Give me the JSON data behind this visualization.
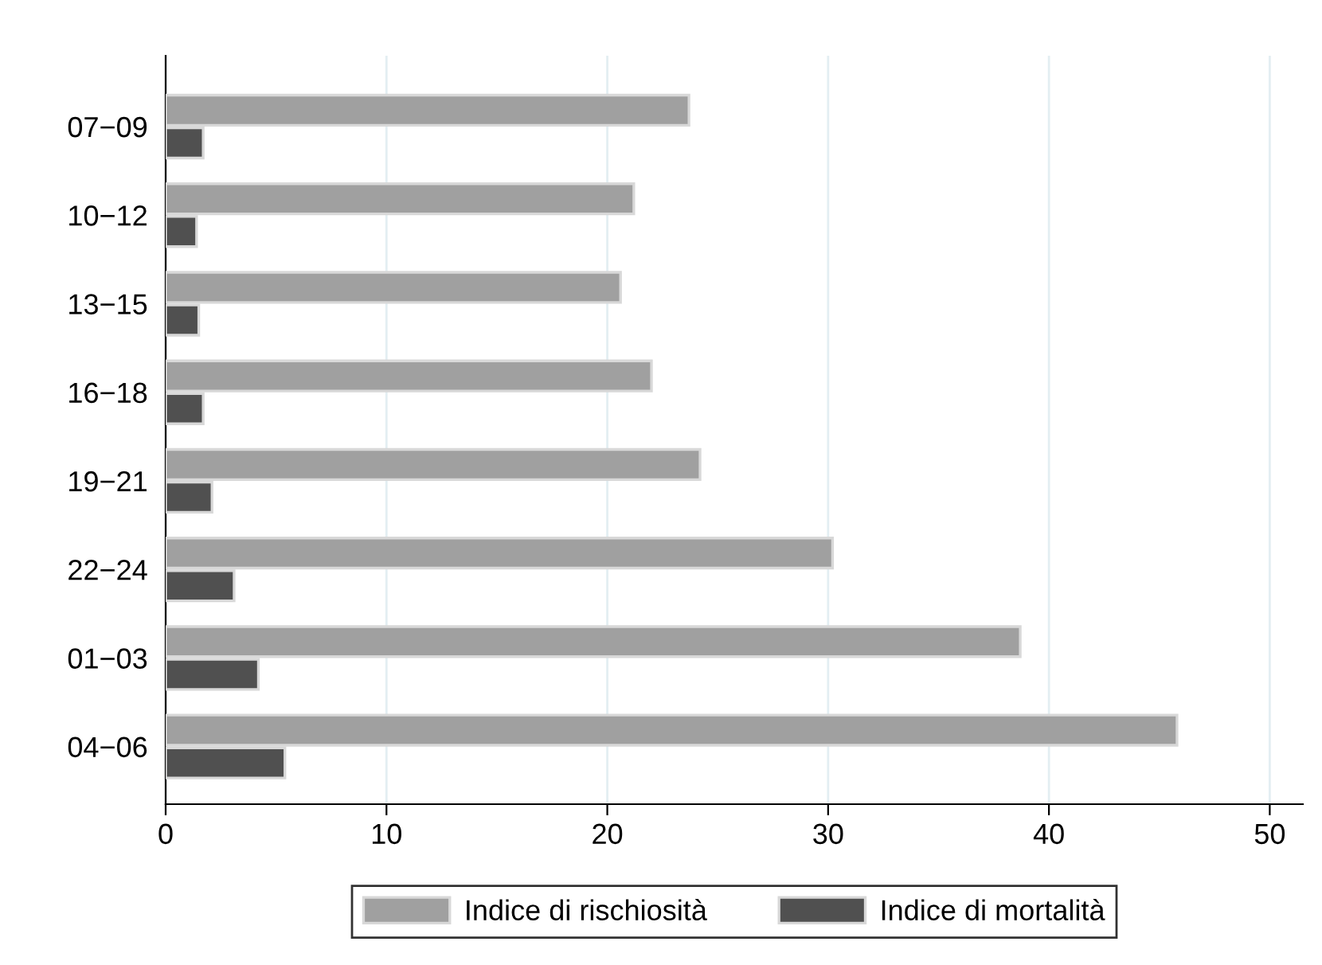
{
  "chart_data": {
    "type": "bar",
    "orientation": "horizontal",
    "categories": [
      "07−09",
      "10−12",
      "13−15",
      "16−18",
      "19−21",
      "22−24",
      "01−03",
      "04−06"
    ],
    "series": [
      {
        "name": "Indice di rischiosità",
        "color": "#a0a0a0",
        "values": [
          23.7,
          21.2,
          20.6,
          22.0,
          24.2,
          30.2,
          38.7,
          45.8
        ]
      },
      {
        "name": "Indice di mortalità",
        "color": "#505050",
        "values": [
          1.7,
          1.4,
          1.5,
          1.7,
          2.1,
          3.1,
          4.2,
          5.4
        ]
      }
    ],
    "xlim": [
      0,
      51.5
    ],
    "xticks": [
      0,
      10,
      20,
      30,
      40,
      50
    ],
    "grid": "x",
    "legend": "bottom"
  }
}
